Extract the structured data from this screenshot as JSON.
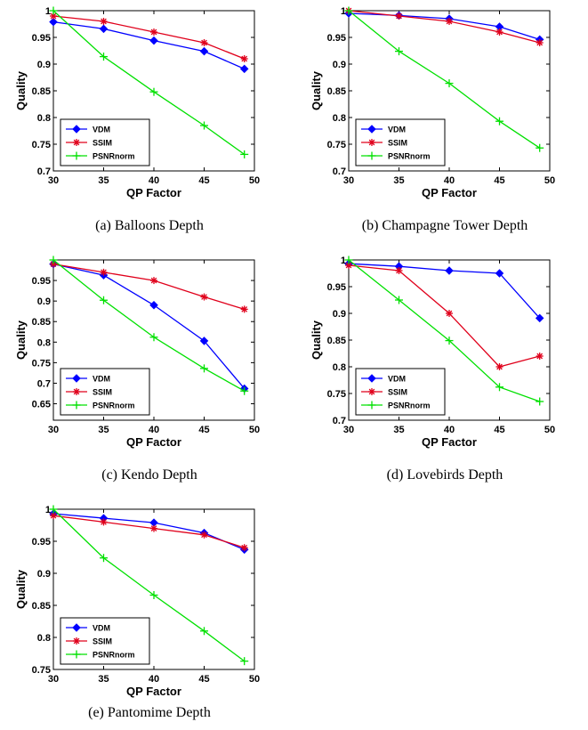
{
  "chart_data": [
    {
      "type": "line",
      "caption": "(a) Balloons Depth",
      "xlabel": "QP Factor",
      "ylabel": "Quality",
      "x": [
        30,
        35,
        40,
        45,
        49
      ],
      "xlim": [
        30,
        50
      ],
      "ylim": [
        0.7,
        1
      ],
      "xticks": [
        30,
        35,
        40,
        45,
        50
      ],
      "yticks": [
        0.7,
        0.75,
        0.8,
        0.85,
        0.9,
        0.95,
        1
      ],
      "yticklabels": [
        "0.7",
        "0.75",
        "0.8",
        "0.85",
        "0.9",
        "0.95",
        "1"
      ],
      "legend_position": "lower-left",
      "series": [
        {
          "name": "VDM",
          "values": [
            0.979,
            0.966,
            0.944,
            0.924,
            0.891
          ]
        },
        {
          "name": "SSIM",
          "values": [
            0.99,
            0.98,
            0.96,
            0.94,
            0.91
          ]
        },
        {
          "name": "PSNRnorm",
          "values": [
            1.0,
            0.914,
            0.848,
            0.785,
            0.731
          ]
        }
      ]
    },
    {
      "type": "line",
      "caption": "(b) Champagne Tower Depth",
      "xlabel": "QP Factor",
      "ylabel": "Quality",
      "x": [
        30,
        35,
        40,
        45,
        49
      ],
      "xlim": [
        30,
        50
      ],
      "ylim": [
        0.7,
        1
      ],
      "xticks": [
        30,
        35,
        40,
        45,
        50
      ],
      "yticks": [
        0.7,
        0.75,
        0.8,
        0.85,
        0.9,
        0.95,
        1
      ],
      "yticklabels": [
        "0.7",
        "0.75",
        "0.8",
        "0.85",
        "0.9",
        "0.95",
        "1"
      ],
      "legend_position": "lower-left",
      "series": [
        {
          "name": "VDM",
          "values": [
            0.995,
            0.991,
            0.985,
            0.97,
            0.946
          ]
        },
        {
          "name": "SSIM",
          "values": [
            1.0,
            0.99,
            0.98,
            0.96,
            0.94
          ]
        },
        {
          "name": "PSNRnorm",
          "values": [
            1.0,
            0.924,
            0.864,
            0.793,
            0.743
          ]
        }
      ]
    },
    {
      "type": "line",
      "caption": "(c) Kendo Depth",
      "xlabel": "QP Factor",
      "ylabel": "Quality",
      "x": [
        30,
        35,
        40,
        45,
        49
      ],
      "xlim": [
        30,
        50
      ],
      "ylim": [
        0.61,
        1
      ],
      "xticks": [
        30,
        35,
        40,
        45,
        50
      ],
      "yticks": [
        0.65,
        0.7,
        0.75,
        0.8,
        0.85,
        0.9,
        0.95
      ],
      "yticklabels": [
        "0.65",
        "0.7",
        "0.75",
        "0.8",
        "0.85",
        "0.9",
        "0.95"
      ],
      "legend_position": "lower-left",
      "series": [
        {
          "name": "VDM",
          "values": [
            0.99,
            0.963,
            0.89,
            0.803,
            0.687
          ]
        },
        {
          "name": "SSIM",
          "values": [
            0.99,
            0.97,
            0.95,
            0.91,
            0.88
          ]
        },
        {
          "name": "PSNRnorm",
          "values": [
            1.0,
            0.902,
            0.812,
            0.736,
            0.681
          ]
        }
      ]
    },
    {
      "type": "line",
      "caption": "(d) Lovebirds Depth",
      "xlabel": "QP Factor",
      "ylabel": "Quality",
      "x": [
        30,
        35,
        40,
        45,
        49
      ],
      "xlim": [
        30,
        50
      ],
      "ylim": [
        0.7,
        1
      ],
      "xticks": [
        30,
        35,
        40,
        45,
        50
      ],
      "yticks": [
        0.7,
        0.75,
        0.8,
        0.85,
        0.9,
        0.95,
        1
      ],
      "yticklabels": [
        "0.7",
        "0.75",
        "0.8",
        "0.85",
        "0.9",
        "0.95",
        "1"
      ],
      "legend_position": "lower-left",
      "series": [
        {
          "name": "VDM",
          "values": [
            0.993,
            0.988,
            0.98,
            0.975,
            0.891
          ]
        },
        {
          "name": "SSIM",
          "values": [
            0.99,
            0.98,
            0.9,
            0.8,
            0.82
          ]
        },
        {
          "name": "PSNRnorm",
          "values": [
            1.0,
            0.925,
            0.849,
            0.762,
            0.735
          ]
        }
      ]
    },
    {
      "type": "line",
      "caption": "(e) Pantomime Depth",
      "xlabel": "QP Factor",
      "ylabel": "Quality",
      "x": [
        30,
        35,
        40,
        45,
        49
      ],
      "xlim": [
        30,
        50
      ],
      "ylim": [
        0.75,
        1
      ],
      "xticks": [
        30,
        35,
        40,
        45,
        50
      ],
      "yticks": [
        0.75,
        0.8,
        0.85,
        0.9,
        0.95,
        1
      ],
      "yticklabels": [
        "0.75",
        "0.8",
        "0.85",
        "0.9",
        "0.95",
        "1"
      ],
      "legend_position": "lower-left",
      "series": [
        {
          "name": "VDM",
          "values": [
            0.993,
            0.986,
            0.979,
            0.963,
            0.937
          ]
        },
        {
          "name": "SSIM",
          "values": [
            0.99,
            0.98,
            0.97,
            0.96,
            0.94
          ]
        },
        {
          "name": "PSNRnorm",
          "values": [
            1.0,
            0.924,
            0.866,
            0.81,
            0.763
          ]
        }
      ]
    }
  ],
  "colors": {
    "VDM": "#0000ff",
    "SSIM": "#e0001b",
    "PSNRnorm": "#00e000"
  }
}
